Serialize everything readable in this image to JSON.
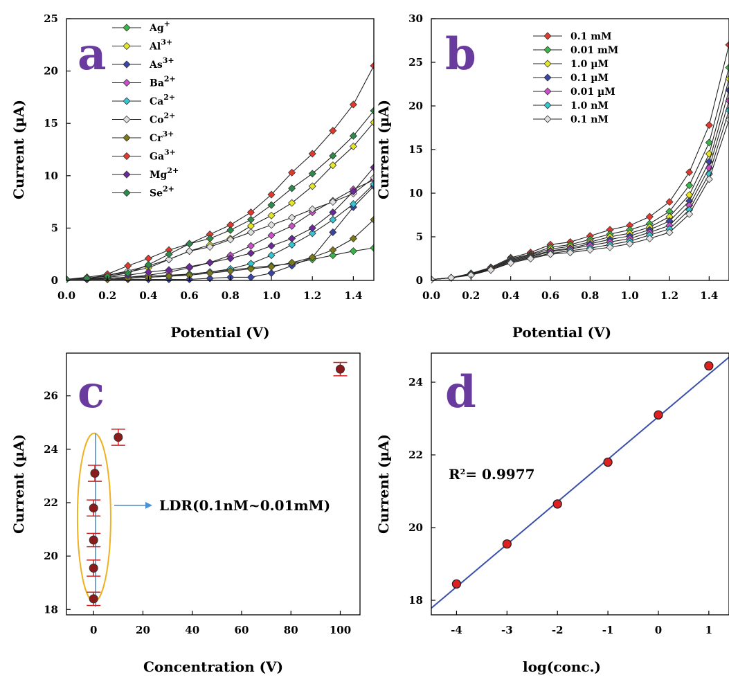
{
  "chart_data": [
    {
      "id": "a",
      "type": "line",
      "panel_letter": "a",
      "xlabel": "Potential (V)",
      "ylabel": "Current (µA)",
      "xlim": [
        0.0,
        1.5
      ],
      "ylim": [
        0,
        25
      ],
      "xticks": [
        "0.0",
        "0.2",
        "0.4",
        "0.6",
        "0.8",
        "1.0",
        "1.2",
        "1.4"
      ],
      "xtick_values": [
        0.0,
        0.2,
        0.4,
        0.6,
        0.8,
        1.0,
        1.2,
        1.4
      ],
      "yticks": [
        "0",
        "5",
        "10",
        "15",
        "20",
        "25"
      ],
      "ytick_values": [
        0,
        5,
        10,
        15,
        20,
        25
      ],
      "grid": false,
      "legend_position": "top-left",
      "x": [
        0.0,
        0.1,
        0.2,
        0.3,
        0.4,
        0.5,
        0.6,
        0.7,
        0.8,
        0.9,
        1.0,
        1.1,
        1.2,
        1.3,
        1.4,
        1.5
      ],
      "series": [
        {
          "name_base": "Ag",
          "name_sup": "+",
          "color": "#3bb54a",
          "values": [
            0.1,
            0.1,
            0.2,
            0.3,
            0.4,
            0.5,
            0.6,
            0.8,
            1.0,
            1.2,
            1.4,
            1.6,
            2.0,
            2.4,
            2.8,
            3.1
          ]
        },
        {
          "name_base": "Al",
          "name_sup": "3+",
          "color": "#e6e629",
          "values": [
            0.1,
            0.2,
            0.5,
            0.8,
            1.2,
            2.0,
            2.8,
            3.4,
            4.0,
            5.2,
            6.2,
            7.4,
            9.0,
            11.0,
            12.8,
            15.1
          ]
        },
        {
          "name_base": "As",
          "name_sup": "3+",
          "color": "#3a45a8",
          "values": [
            0.1,
            0.1,
            0.1,
            0.1,
            0.1,
            0.1,
            0.1,
            0.2,
            0.3,
            0.3,
            0.7,
            1.4,
            2.2,
            4.6,
            7.0,
            9.0
          ]
        },
        {
          "name_base": "Ba",
          "name_sup": "2+",
          "color": "#c94fc9",
          "values": [
            0.1,
            0.1,
            0.2,
            0.3,
            0.5,
            0.8,
            1.2,
            1.7,
            2.4,
            3.3,
            4.3,
            5.2,
            6.5,
            7.6,
            8.7,
            9.6
          ]
        },
        {
          "name_base": "Ca",
          "name_sup": "2+",
          "color": "#35c4d0",
          "values": [
            0.1,
            0.1,
            0.1,
            0.2,
            0.3,
            0.4,
            0.6,
            0.8,
            1.1,
            1.6,
            2.4,
            3.4,
            4.5,
            5.8,
            7.3,
            9.2
          ]
        },
        {
          "name_base": "Co",
          "name_sup": "2+",
          "color": "#e0e0e0",
          "values": [
            0.1,
            0.1,
            0.5,
            0.9,
            1.4,
            2.0,
            2.8,
            3.2,
            3.9,
            4.6,
            5.3,
            6.0,
            6.8,
            7.5,
            8.3,
            9.8
          ]
        },
        {
          "name_base": "Cr",
          "name_sup": "3+",
          "color": "#7a7a1c",
          "values": [
            0.1,
            0.1,
            0.1,
            0.2,
            0.3,
            0.4,
            0.5,
            0.7,
            0.9,
            1.1,
            1.3,
            1.7,
            2.2,
            2.9,
            4.0,
            5.8
          ]
        },
        {
          "name_base": "Ga",
          "name_sup": "3+",
          "color": "#e03a2f",
          "values": [
            0.1,
            0.3,
            0.6,
            1.4,
            2.1,
            2.9,
            3.5,
            4.4,
            5.3,
            6.5,
            8.2,
            10.3,
            12.1,
            14.3,
            16.8,
            20.5
          ]
        },
        {
          "name_base": "Mg",
          "name_sup": "2+",
          "color": "#6a2a9a",
          "values": [
            0.1,
            0.1,
            0.3,
            0.5,
            0.8,
            1.0,
            1.3,
            1.7,
            2.1,
            2.6,
            3.3,
            4.0,
            5.0,
            6.5,
            8.5,
            10.8
          ]
        },
        {
          "name_base": "Se",
          "name_sup": "2+",
          "color": "#2e8b4a",
          "values": [
            0.1,
            0.2,
            0.4,
            0.7,
            1.5,
            2.5,
            3.5,
            4.0,
            4.8,
            5.8,
            7.2,
            8.8,
            10.2,
            11.9,
            13.8,
            16.2
          ]
        }
      ]
    },
    {
      "id": "b",
      "type": "line",
      "panel_letter": "b",
      "xlabel": "Potential (V)",
      "ylabel": "Current (µA)",
      "xlim": [
        0.0,
        1.5
      ],
      "ylim": [
        0,
        30
      ],
      "xticks": [
        "0.0",
        "0.2",
        "0.4",
        "0.6",
        "0.8",
        "1.0",
        "1.2",
        "1.4"
      ],
      "xtick_values": [
        0.0,
        0.2,
        0.4,
        0.6,
        0.8,
        1.0,
        1.2,
        1.4
      ],
      "yticks": [
        "0",
        "5",
        "10",
        "15",
        "20",
        "25",
        "30"
      ],
      "ytick_values": [
        0,
        5,
        10,
        15,
        20,
        25,
        30
      ],
      "grid": false,
      "legend_position": "top-left",
      "x": [
        0.0,
        0.1,
        0.2,
        0.3,
        0.4,
        0.5,
        0.6,
        0.7,
        0.8,
        0.9,
        1.0,
        1.1,
        1.2,
        1.3,
        1.4,
        1.5
      ],
      "series": [
        {
          "name": "0.1 mM",
          "color": "#e03a2f",
          "values": [
            0.1,
            0.3,
            0.8,
            1.5,
            2.6,
            3.2,
            4.1,
            4.4,
            5.1,
            5.8,
            6.3,
            7.3,
            9.0,
            12.4,
            17.8,
            27.0
          ]
        },
        {
          "name": "0.01 mM",
          "color": "#3bb54a",
          "values": [
            0.1,
            0.3,
            0.8,
            1.4,
            2.5,
            3.0,
            3.8,
            4.1,
            4.7,
            5.3,
            5.8,
            6.5,
            7.9,
            10.9,
            15.8,
            24.4
          ]
        },
        {
          "name": "1.0 µM",
          "color": "#e6e629",
          "values": [
            0.1,
            0.3,
            0.7,
            1.4,
            2.4,
            2.9,
            3.6,
            3.9,
            4.4,
            5.0,
            5.4,
            6.1,
            7.3,
            9.8,
            14.5,
            23.1
          ]
        },
        {
          "name": "0.1 µM",
          "color": "#3a45a8",
          "values": [
            0.1,
            0.3,
            0.7,
            1.3,
            2.3,
            2.8,
            3.4,
            3.7,
            4.2,
            4.7,
            5.1,
            5.8,
            6.8,
            9.1,
            13.6,
            21.8
          ]
        },
        {
          "name": "0.01 µM",
          "color": "#c94fc9",
          "values": [
            0.1,
            0.3,
            0.7,
            1.3,
            2.2,
            2.7,
            3.3,
            3.6,
            4.0,
            4.4,
            4.8,
            5.5,
            6.3,
            8.6,
            12.9,
            20.6
          ]
        },
        {
          "name": "1.0 nM",
          "color": "#35c4d0",
          "values": [
            0.1,
            0.3,
            0.7,
            1.2,
            2.1,
            2.6,
            3.1,
            3.4,
            3.7,
            4.1,
            4.5,
            5.2,
            5.9,
            8.1,
            12.2,
            19.5
          ]
        },
        {
          "name": "0.1 nM",
          "color": "#e0e0e0",
          "values": [
            0.1,
            0.3,
            0.6,
            1.2,
            2.0,
            2.5,
            3.0,
            3.2,
            3.5,
            3.8,
            4.2,
            4.8,
            5.5,
            7.6,
            11.6,
            18.4
          ]
        }
      ]
    },
    {
      "id": "c",
      "type": "scatter",
      "panel_letter": "c",
      "xlabel": "Concentration (V)",
      "ylabel": "Current (µA)",
      "xlim": [
        -11,
        108
      ],
      "ylim": [
        17.8,
        27.6
      ],
      "xticks": [
        "0",
        "20",
        "40",
        "60",
        "80",
        "100"
      ],
      "xtick_values": [
        0,
        20,
        40,
        60,
        80,
        100
      ],
      "yticks": [
        "18",
        "20",
        "22",
        "24",
        "26"
      ],
      "ytick_values": [
        18,
        20,
        22,
        24,
        26
      ],
      "grid": false,
      "points": [
        {
          "x": 0.0,
          "y": 18.4,
          "err": 0.25
        },
        {
          "x": 0.0,
          "y": 19.55,
          "err": 0.3
        },
        {
          "x": 0.0,
          "y": 20.6,
          "err": 0.25
        },
        {
          "x": 0.0,
          "y": 21.8,
          "err": 0.3
        },
        {
          "x": 0.5,
          "y": 23.1,
          "err": 0.3
        },
        {
          "x": 10.0,
          "y": 24.45,
          "err": 0.3
        },
        {
          "x": 100.0,
          "y": 27.0,
          "err": 0.25
        }
      ],
      "point_color": "#8b1a1a",
      "error_color": "#d02020",
      "annotation": "LDR(0.1nM~0.01mM)",
      "annotation_colors": {
        "ellipse": "#f0b020",
        "line": "#4a90d9"
      }
    },
    {
      "id": "d",
      "type": "scatter",
      "panel_letter": "d",
      "xlabel": "log(conc.)",
      "ylabel": "Current (µA)",
      "xlim": [
        -4.5,
        1.4
      ],
      "ylim": [
        17.6,
        24.8
      ],
      "xticks": [
        "-4",
        "-3",
        "-2",
        "-1",
        "0",
        "1"
      ],
      "xtick_values": [
        -4,
        -3,
        -2,
        -1,
        0,
        1
      ],
      "yticks": [
        "18",
        "20",
        "22",
        "24"
      ],
      "ytick_values": [
        18,
        20,
        22,
        24
      ],
      "grid": false,
      "points": [
        {
          "x": -4,
          "y": 18.45
        },
        {
          "x": -3,
          "y": 19.55
        },
        {
          "x": -2,
          "y": 20.65
        },
        {
          "x": -1,
          "y": 21.8
        },
        {
          "x": 0,
          "y": 23.1
        },
        {
          "x": 1,
          "y": 24.45
        }
      ],
      "point_color": "#e02020",
      "fit": {
        "slope": 1.17,
        "intercept": 23.05,
        "color": "#3a4fa8"
      },
      "annotation_base": "R",
      "annotation_sup": "2",
      "annotation_rest": "= 0.9977"
    }
  ]
}
